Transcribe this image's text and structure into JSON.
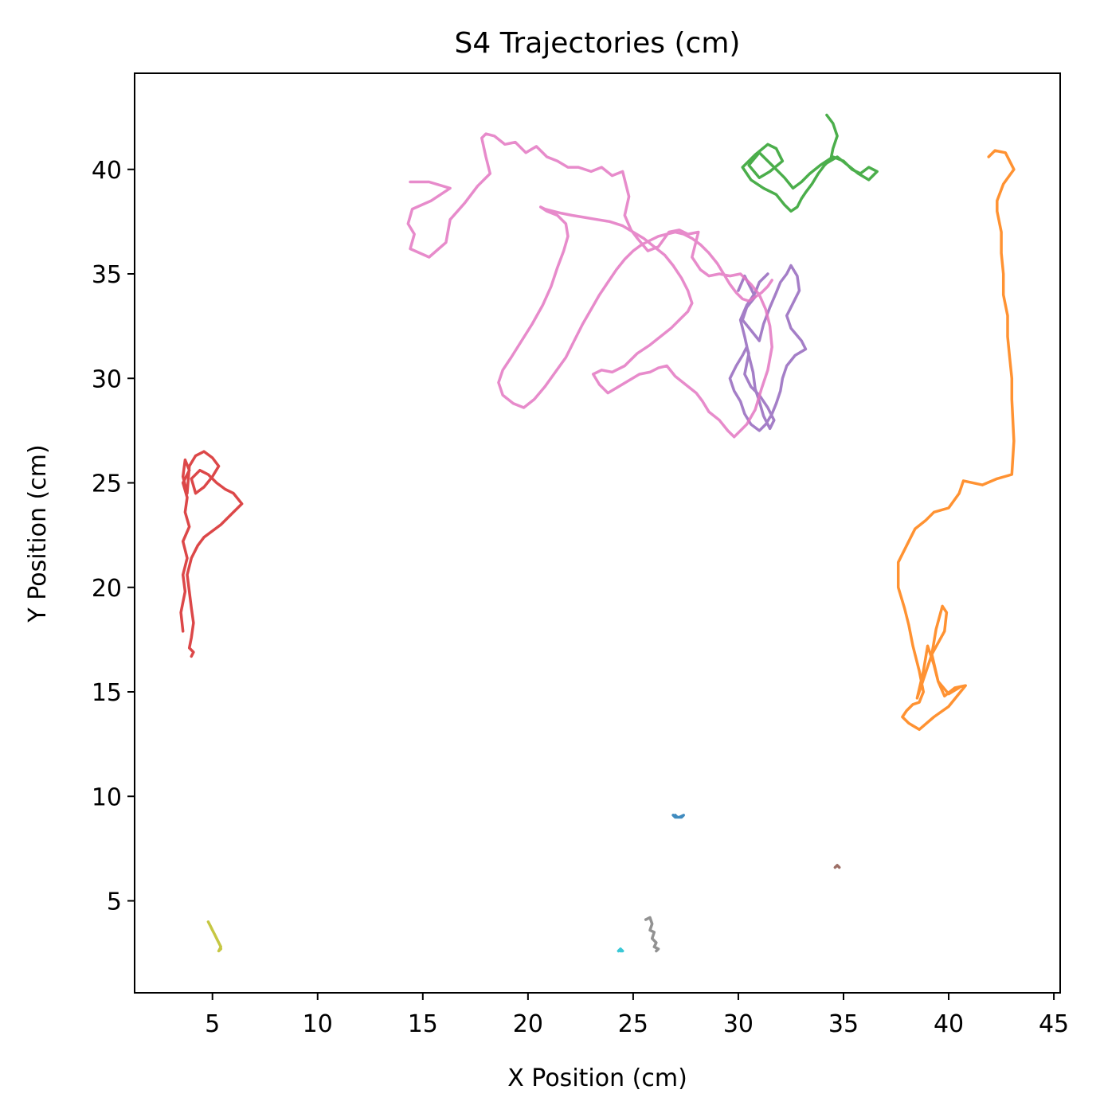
{
  "chart_data": {
    "type": "line",
    "title": "S4 Trajectories (cm)",
    "xlabel": "X Position (cm)",
    "ylabel": "Y Position (cm)",
    "xlim": [
      1.3,
      45.3
    ],
    "ylim": [
      0.6,
      44.6
    ],
    "xticks": [
      5,
      10,
      15,
      20,
      25,
      30,
      35,
      40,
      45
    ],
    "yticks": [
      5,
      10,
      15,
      20,
      25,
      30,
      35,
      40
    ],
    "grid": false,
    "legend": "none",
    "series": [
      {
        "color": "#1f77b4",
        "x": [
          26.9,
          27.0,
          27.2,
          27.4,
          27.3,
          27.1,
          27.0
        ],
        "y": [
          9.1,
          9.0,
          9.0,
          9.1,
          9.0,
          9.0,
          9.1
        ]
      },
      {
        "color": "#ff7f0e",
        "x": [
          41.9,
          42.2,
          42.7,
          43.1,
          42.6,
          42.3,
          42.3,
          42.5,
          42.5,
          42.6,
          42.6,
          42.8,
          42.8,
          42.9,
          43.0,
          43.0,
          43.1,
          43.0,
          42.3,
          41.6,
          40.7,
          40.5,
          40.0,
          39.3,
          38.9,
          38.4,
          38.0,
          37.6,
          37.6,
          37.9,
          38.1,
          38.3,
          38.6,
          38.8,
          38.6,
          38.3,
          38.0,
          37.8,
          38.1,
          38.6,
          39.3,
          40.0,
          40.8,
          40.3,
          39.8,
          39.5,
          39.3,
          39.0,
          38.8,
          38.5,
          38.8,
          39.2,
          39.8,
          39.9,
          39.7,
          39.4,
          39.2,
          39.5,
          40.0,
          40.5
        ],
        "y": [
          40.6,
          40.9,
          40.8,
          40.0,
          39.3,
          38.5,
          38.0,
          37.0,
          36.0,
          35.0,
          34.0,
          33.0,
          32.0,
          31.0,
          30.0,
          29.0,
          27.0,
          25.4,
          25.2,
          24.9,
          25.1,
          24.5,
          23.8,
          23.6,
          23.2,
          22.8,
          22.0,
          21.2,
          20.0,
          19.0,
          18.2,
          17.2,
          16.0,
          15.0,
          14.5,
          14.4,
          14.1,
          13.8,
          13.5,
          13.2,
          13.8,
          14.3,
          15.3,
          15.2,
          14.8,
          15.5,
          16.3,
          17.2,
          16.0,
          14.7,
          15.6,
          16.8,
          17.9,
          18.8,
          19.1,
          18.0,
          16.8,
          15.5,
          14.9,
          15.2
        ]
      },
      {
        "color": "#2ca02c",
        "x": [
          34.2,
          34.5,
          34.7,
          34.5,
          34.4,
          34.1,
          33.8,
          33.5,
          33.2,
          33.0,
          32.8,
          32.5,
          32.2,
          31.8,
          31.2,
          30.6,
          30.2,
          30.8,
          31.4,
          31.8,
          32.1,
          31.5,
          31.0,
          30.5,
          31.0,
          31.6,
          32.2,
          32.6,
          33.0,
          33.4,
          33.9,
          34.5,
          35.0,
          35.4,
          35.8,
          36.2,
          36.6,
          36.2,
          35.7,
          35.2,
          34.7,
          34.2
        ],
        "y": [
          42.6,
          42.2,
          41.6,
          41.0,
          40.5,
          40.2,
          39.8,
          39.3,
          38.9,
          38.6,
          38.2,
          38.0,
          38.3,
          38.8,
          39.1,
          39.5,
          40.1,
          40.7,
          41.2,
          41.0,
          40.4,
          39.9,
          39.6,
          40.2,
          40.8,
          40.2,
          39.6,
          39.1,
          39.4,
          39.8,
          40.2,
          40.6,
          40.4,
          40.0,
          39.8,
          40.1,
          39.9,
          39.5,
          39.8,
          40.2,
          40.6,
          40.3
        ]
      },
      {
        "color": "#d62728",
        "x": [
          3.6,
          3.5,
          3.7,
          3.6,
          3.8,
          3.6,
          3.9,
          3.7,
          3.8,
          3.6,
          3.9,
          3.7,
          3.6,
          3.8,
          3.9,
          4.2,
          4.6,
          5.0,
          5.3,
          5.0,
          4.6,
          4.2,
          4.0,
          4.4,
          4.8,
          5.2,
          5.6,
          6.0,
          6.4,
          6.0,
          5.7,
          5.4,
          5.0,
          4.6,
          4.3,
          4.0,
          3.8,
          3.9,
          4.0,
          4.1,
          4.0,
          3.9,
          4.1,
          4.0
        ],
        "y": [
          17.9,
          18.8,
          19.8,
          20.6,
          21.4,
          22.2,
          22.9,
          23.6,
          24.3,
          25.0,
          25.6,
          26.1,
          25.3,
          24.5,
          25.8,
          26.3,
          26.5,
          26.2,
          25.8,
          25.3,
          24.8,
          24.5,
          25.2,
          25.6,
          25.4,
          25.0,
          24.7,
          24.5,
          24.0,
          23.6,
          23.3,
          23.0,
          22.7,
          22.4,
          22.0,
          21.4,
          20.6,
          19.8,
          19.0,
          18.3,
          17.6,
          17.1,
          16.9,
          16.7
        ]
      },
      {
        "color": "#9467bd",
        "x": [
          30.0,
          30.3,
          30.5,
          30.8,
          30.4,
          30.2,
          30.6,
          31.0,
          31.2,
          31.5,
          31.8,
          32.0,
          32.3,
          32.5,
          32.8,
          32.9,
          32.6,
          32.3,
          32.5,
          33.0,
          33.2,
          32.7,
          32.3,
          32.1,
          32.0,
          31.8,
          31.6,
          31.3,
          31.1,
          31.0,
          30.6,
          30.3,
          30.1,
          29.8,
          29.6,
          29.9,
          30.2,
          30.4,
          30.5,
          30.4,
          30.3,
          30.6,
          31.0,
          31.4,
          31.7,
          31.5,
          31.2,
          31.0,
          30.8,
          30.7,
          30.5,
          30.3,
          30.1,
          30.4,
          30.8,
          31.0,
          31.4
        ],
        "y": [
          34.2,
          34.9,
          34.5,
          33.9,
          33.4,
          32.8,
          32.3,
          31.8,
          32.6,
          33.4,
          34.1,
          34.6,
          35.0,
          35.4,
          34.9,
          34.2,
          33.6,
          33.0,
          32.4,
          31.8,
          31.4,
          31.1,
          30.6,
          30.0,
          29.4,
          28.8,
          28.3,
          27.8,
          27.6,
          27.5,
          27.8,
          28.3,
          28.9,
          29.4,
          30.0,
          30.6,
          31.1,
          31.5,
          31.2,
          30.7,
          30.2,
          29.6,
          29.2,
          28.6,
          28.0,
          27.6,
          28.2,
          28.9,
          29.5,
          30.3,
          31.1,
          32.0,
          32.8,
          33.5,
          34.1,
          34.6,
          35.0
        ]
      },
      {
        "color": "#8c564b",
        "x": [
          34.6,
          34.7,
          34.8
        ],
        "y": [
          6.6,
          6.7,
          6.6
        ]
      },
      {
        "color": "#e377c2",
        "x": [
          14.4,
          15.3,
          16.3,
          15.4,
          14.5,
          14.3,
          14.6,
          14.4,
          15.3,
          16.1,
          16.3,
          17.0,
          17.6,
          18.2,
          18.0,
          17.8,
          18.0,
          18.4,
          18.9,
          19.4,
          19.9,
          20.4,
          20.9,
          21.4,
          21.9,
          22.4,
          23.0,
          23.5,
          24.0,
          24.5,
          24.8,
          24.6,
          24.9,
          25.2,
          25.7,
          26.2,
          26.7,
          27.2,
          27.6,
          28.1,
          27.8,
          28.2,
          28.6,
          29.1,
          29.6,
          30.1,
          30.6,
          31.0,
          31.3,
          31.5,
          31.6,
          31.4,
          31.1,
          30.8,
          30.4,
          29.8,
          29.5,
          29.1,
          28.6,
          28.3,
          28.0,
          27.5,
          27.0,
          26.6,
          26.2,
          25.8,
          25.3,
          24.8,
          24.3,
          23.8,
          23.4,
          23.1,
          23.5,
          24.0,
          24.6,
          25.2,
          25.8,
          26.3,
          26.8,
          27.3,
          27.6,
          27.8,
          27.6,
          27.3,
          26.9,
          26.5,
          26.0,
          25.5,
          25.0,
          24.5,
          23.9,
          23.3,
          22.7,
          22.1,
          21.6,
          21.2,
          20.8,
          20.6,
          20.9,
          21.4,
          21.8,
          21.9,
          21.7,
          21.4,
          21.1,
          20.7,
          20.2,
          19.7,
          19.2,
          18.8,
          18.6,
          18.8,
          19.3,
          19.8,
          20.3,
          20.8,
          21.3,
          21.8,
          22.2,
          22.6,
          23.0,
          23.4,
          23.8,
          24.2,
          24.6,
          25.0,
          25.4,
          25.8,
          26.2,
          26.6,
          27.0,
          27.4,
          27.8,
          28.2,
          28.6,
          29.0,
          29.3,
          29.6,
          29.9,
          30.2,
          30.5,
          30.8,
          31.1,
          31.4,
          31.6
        ],
        "y": [
          39.4,
          39.4,
          39.1,
          38.5,
          38.1,
          37.4,
          36.9,
          36.2,
          35.8,
          36.5,
          37.6,
          38.4,
          39.2,
          39.8,
          40.6,
          41.5,
          41.7,
          41.6,
          41.2,
          41.3,
          40.8,
          41.1,
          40.6,
          40.4,
          40.1,
          40.1,
          39.9,
          40.1,
          39.7,
          39.9,
          38.7,
          37.8,
          37.1,
          36.7,
          36.1,
          36.3,
          37.0,
          37.1,
          36.9,
          37.0,
          35.8,
          35.2,
          34.9,
          35.0,
          34.9,
          35.0,
          34.5,
          34.0,
          33.3,
          32.5,
          31.5,
          30.4,
          29.5,
          28.5,
          27.8,
          27.2,
          27.5,
          28.0,
          28.4,
          28.9,
          29.3,
          29.7,
          30.1,
          30.6,
          30.5,
          30.3,
          30.2,
          29.9,
          29.6,
          29.3,
          29.7,
          30.2,
          30.4,
          30.3,
          30.6,
          31.2,
          31.6,
          32.0,
          32.4,
          32.9,
          33.2,
          33.6,
          34.2,
          34.8,
          35.4,
          35.9,
          36.3,
          36.7,
          37.0,
          37.3,
          37.5,
          37.6,
          37.7,
          37.8,
          37.9,
          38.0,
          38.1,
          38.2,
          38.0,
          37.8,
          37.4,
          36.8,
          36.1,
          35.3,
          34.4,
          33.5,
          32.6,
          31.8,
          31.0,
          30.4,
          29.8,
          29.2,
          28.8,
          28.6,
          29.0,
          29.6,
          30.3,
          31.0,
          31.8,
          32.6,
          33.3,
          34.0,
          34.6,
          35.2,
          35.7,
          36.1,
          36.4,
          36.6,
          36.8,
          36.9,
          37.0,
          36.9,
          36.7,
          36.4,
          36.0,
          35.5,
          35.0,
          34.5,
          34.1,
          33.8,
          33.7,
          33.9,
          34.1,
          34.4,
          34.7
        ]
      },
      {
        "color": "#7f7f7f",
        "x": [
          25.6,
          25.8,
          25.9,
          25.8,
          26.0,
          25.9,
          26.1,
          26.0,
          26.2,
          26.1
        ],
        "y": [
          4.1,
          4.2,
          3.9,
          3.6,
          3.5,
          3.2,
          3.0,
          2.8,
          2.7,
          2.6
        ]
      },
      {
        "color": "#bcbd22",
        "x": [
          4.8,
          4.9,
          5.0,
          5.1,
          5.2,
          5.3,
          5.4,
          5.3,
          5.4
        ],
        "y": [
          4.0,
          3.8,
          3.6,
          3.4,
          3.2,
          3.0,
          2.8,
          2.6,
          2.7
        ]
      },
      {
        "color": "#17becf",
        "x": [
          24.3,
          24.4,
          24.5,
          24.4
        ],
        "y": [
          2.6,
          2.7,
          2.6,
          2.6
        ]
      }
    ]
  }
}
